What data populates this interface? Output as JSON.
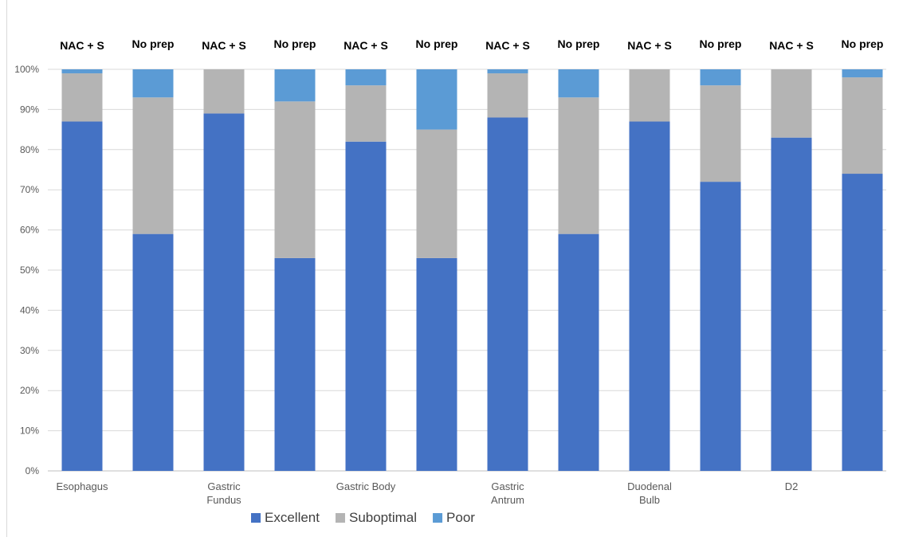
{
  "chart_data": {
    "type": "bar",
    "stacked": true,
    "percent_stacked": true,
    "groups": [
      "Esophagus",
      "Gastric Fundus",
      "Gastric Body",
      "Gastric Antrum",
      "Duodenal Bulb",
      "D2"
    ],
    "bar_labels": [
      "NAC + S",
      "No prep",
      "NAC + S",
      "No prep",
      "NAC + S",
      "No prep",
      "NAC + S",
      "No prep",
      "NAC + S",
      "No prep",
      "NAC + S",
      "No prep"
    ],
    "category_axis_labels": [
      "Esophagus",
      "",
      "Gastric\nFundus",
      "",
      "Gastric Body",
      "",
      "Gastric\nAntrum",
      "",
      "Duodenal\nBulb",
      "",
      "D2",
      ""
    ],
    "series": [
      {
        "name": "Excellent",
        "color": "#4472C4",
        "values": [
          87,
          59,
          89,
          53,
          82,
          53,
          88,
          59,
          87,
          72,
          83,
          74
        ]
      },
      {
        "name": "Suboptimal",
        "color": "#B4B4B4",
        "values": [
          12,
          34,
          11,
          39,
          14,
          32,
          11,
          34,
          13,
          24,
          17,
          24
        ]
      },
      {
        "name": "Poor",
        "color": "#5B9BD5",
        "values": [
          1,
          7,
          0,
          8,
          4,
          15,
          1,
          7,
          0,
          4,
          0,
          2
        ]
      }
    ],
    "ylim": [
      0,
      100
    ],
    "yticks": [
      "0%",
      "10%",
      "20%",
      "30%",
      "40%",
      "50%",
      "60%",
      "70%",
      "80%",
      "90%",
      "100%"
    ],
    "grid": true,
    "legend_position": "bottom"
  }
}
